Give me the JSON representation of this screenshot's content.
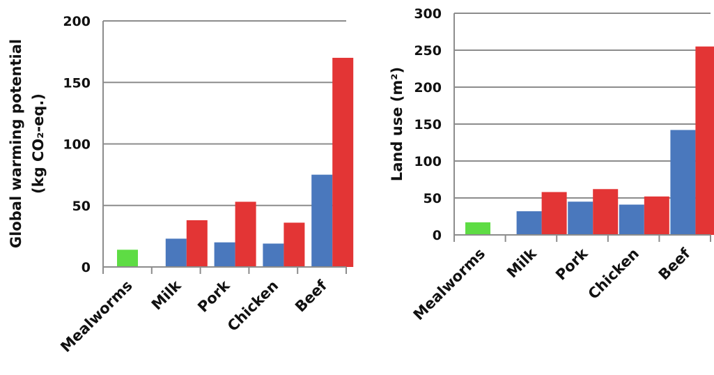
{
  "colors": {
    "mealworms": "#5edc44",
    "conventional_low": "#4a78bd",
    "conventional_high": "#e33535",
    "grid": "#8c8c8c",
    "text": "#111111"
  },
  "chart_data": [
    {
      "type": "bar",
      "ylabel_line1": "Global warming potential",
      "ylabel_line2": "(kg CO₂-eq.)",
      "categories": [
        "Mealworms",
        "Milk",
        "Pork",
        "Chicken",
        "Beef"
      ],
      "series": [
        {
          "values": [
            14,
            23,
            20,
            19,
            75
          ],
          "color": "#4a78bd"
        },
        {
          "values": [
            null,
            38,
            53,
            36,
            170
          ],
          "color": "#e33535"
        }
      ],
      "mealworm_color": "#5edc44",
      "ylim": [
        0,
        200
      ],
      "yticks": [
        "0",
        "50",
        "100",
        "150",
        "200"
      ],
      "grid": true
    },
    {
      "type": "bar",
      "ylabel": "Land use (m²)",
      "categories": [
        "Mealworms",
        "Milk",
        "Pork",
        "Chicken",
        "Beef"
      ],
      "series": [
        {
          "values": [
            17,
            32,
            45,
            41,
            142
          ],
          "color": "#4a78bd"
        },
        {
          "values": [
            null,
            58,
            62,
            52,
            255
          ],
          "color": "#e33535"
        }
      ],
      "mealworm_color": "#5edc44",
      "ylim": [
        0,
        300
      ],
      "yticks": [
        "0",
        "50",
        "100",
        "150",
        "200",
        "250",
        "300"
      ],
      "grid": true
    }
  ]
}
